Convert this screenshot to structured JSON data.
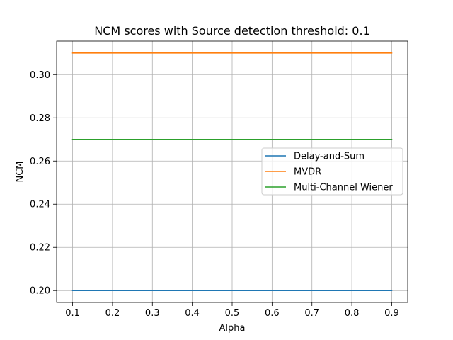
{
  "chart_data": {
    "type": "line",
    "title": "NCM scores with Source detection threshold: 0.1",
    "xlabel": "Alpha",
    "ylabel": "NCM",
    "x": [
      0.1,
      0.2,
      0.3,
      0.4,
      0.5,
      0.6,
      0.7,
      0.8,
      0.9
    ],
    "xlim": [
      0.06,
      0.94
    ],
    "ylim": [
      0.1945,
      0.3155
    ],
    "xticks": [
      "0.1",
      "0.2",
      "0.3",
      "0.4",
      "0.5",
      "0.6",
      "0.7",
      "0.8",
      "0.9"
    ],
    "xtick_values": [
      0.1,
      0.2,
      0.3,
      0.4,
      0.5,
      0.6,
      0.7,
      0.8,
      0.9
    ],
    "yticks": [
      "0.20",
      "0.22",
      "0.24",
      "0.26",
      "0.28",
      "0.30"
    ],
    "ytick_values": [
      0.2,
      0.22,
      0.24,
      0.26,
      0.28,
      0.3
    ],
    "grid": true,
    "legend_position": "center-right",
    "series": [
      {
        "name": "Delay-and-Sum",
        "color": "#1f77b4",
        "values": [
          0.2,
          0.2,
          0.2,
          0.2,
          0.2,
          0.2,
          0.2,
          0.2,
          0.2
        ]
      },
      {
        "name": "MVDR",
        "color": "#ff7f0e",
        "values": [
          0.31,
          0.31,
          0.31,
          0.31,
          0.31,
          0.31,
          0.31,
          0.31,
          0.31
        ]
      },
      {
        "name": "Multi-Channel Wiener",
        "color": "#2ca02c",
        "values": [
          0.27,
          0.27,
          0.27,
          0.27,
          0.27,
          0.27,
          0.27,
          0.27,
          0.27
        ]
      }
    ]
  }
}
